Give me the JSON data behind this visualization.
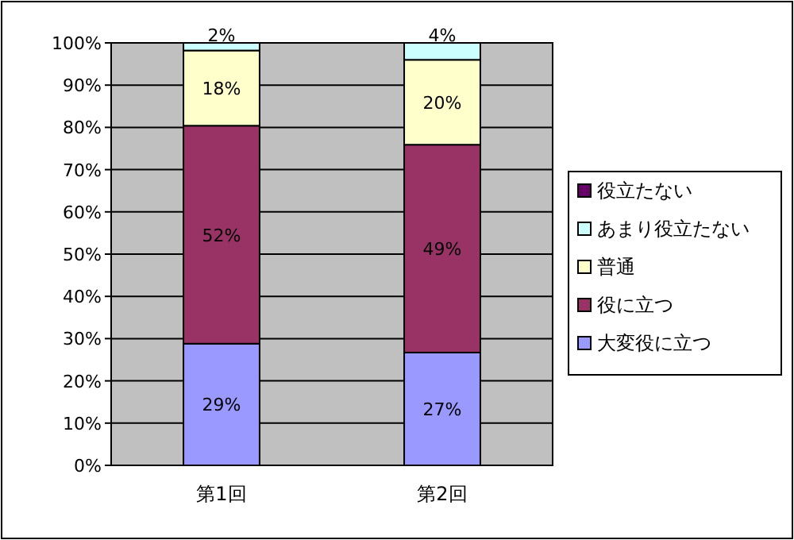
{
  "chart_data": {
    "type": "bar",
    "stacked": true,
    "categories": [
      "第1回",
      "第2回"
    ],
    "series": [
      {
        "name": "大変役に立つ",
        "color": "#9999ff",
        "values": [
          28.8,
          26.7
        ],
        "value_labels": [
          "29%",
          "27%"
        ]
      },
      {
        "name": "役に立つ",
        "color": "#993366",
        "values": [
          51.6,
          49.2
        ],
        "value_labels": [
          "52%",
          "49%"
        ]
      },
      {
        "name": "普通",
        "color": "#ffffcc",
        "values": [
          17.8,
          20.1
        ],
        "value_labels": [
          "18%",
          "20%"
        ]
      },
      {
        "name": "あまり役立たない",
        "color": "#ccffff",
        "values": [
          1.8,
          4.0
        ],
        "value_labels": [
          "2%",
          "4%"
        ]
      },
      {
        "name": "役立たない",
        "color": "#660066",
        "values": [
          0,
          0
        ],
        "value_labels": [
          null,
          null
        ]
      }
    ],
    "ylim": [
      0,
      100
    ],
    "yticks": [
      {
        "value": 0,
        "label": "0%"
      },
      {
        "value": 10,
        "label": "10%"
      },
      {
        "value": 20,
        "label": "20%"
      },
      {
        "value": 30,
        "label": "30%"
      },
      {
        "value": 40,
        "label": "40%"
      },
      {
        "value": 50,
        "label": "50%"
      },
      {
        "value": 60,
        "label": "60%"
      },
      {
        "value": 70,
        "label": "70%"
      },
      {
        "value": 80,
        "label": "80%"
      },
      {
        "value": 90,
        "label": "90%"
      },
      {
        "value": 100,
        "label": "100%"
      }
    ],
    "grid": "y",
    "legend": "right"
  }
}
